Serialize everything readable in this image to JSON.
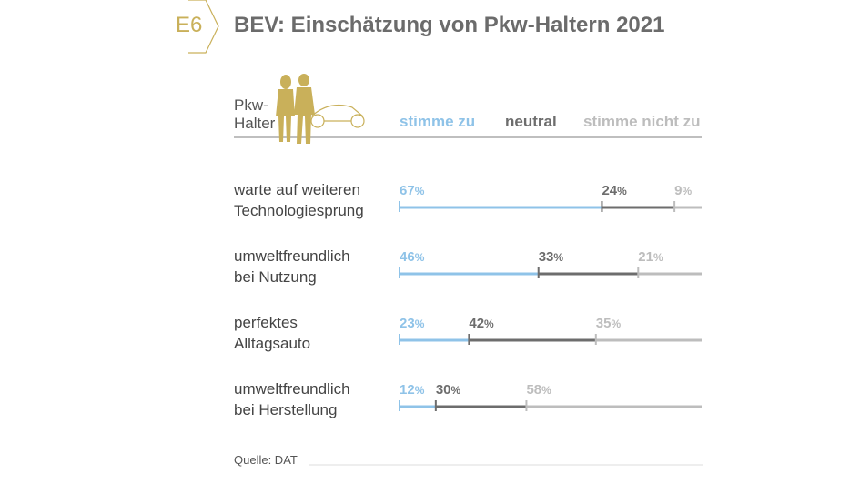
{
  "header": {
    "badge": "E6",
    "title": "BEV: Einschätzung von Pkw-Haltern 2021",
    "group_label_line1": "Pkw-",
    "group_label_line2": "Halter"
  },
  "colors": {
    "agree": "#8fc3e8",
    "neutral": "#6d6d6d",
    "disagree": "#bdbdbd",
    "gold": "#c9b05a"
  },
  "chart_data": {
    "type": "bar",
    "stacked": true,
    "orientation": "horizontal",
    "title": "BEV: Einschätzung von Pkw-Haltern 2021",
    "legend": [
      "stimme zu",
      "neutral",
      "stimme nicht zu"
    ],
    "legend_placement": "top",
    "categories": [
      [
        "warte auf weiteren",
        "Technologiesprung"
      ],
      [
        "umweltfreundlich",
        "bei Nutzung"
      ],
      [
        "perfektes",
        "Alltagsauto"
      ],
      [
        "umweltfreundlich",
        "bei Herstellung"
      ]
    ],
    "series": [
      {
        "name": "stimme zu",
        "values": [
          67,
          46,
          23,
          12
        ]
      },
      {
        "name": "neutral",
        "values": [
          24,
          33,
          42,
          30
        ]
      },
      {
        "name": "stimme nicht zu",
        "values": [
          9,
          21,
          35,
          58
        ]
      }
    ],
    "unit": "%",
    "xlim": [
      0,
      100
    ]
  },
  "footer": {
    "source": "Quelle: DAT"
  }
}
